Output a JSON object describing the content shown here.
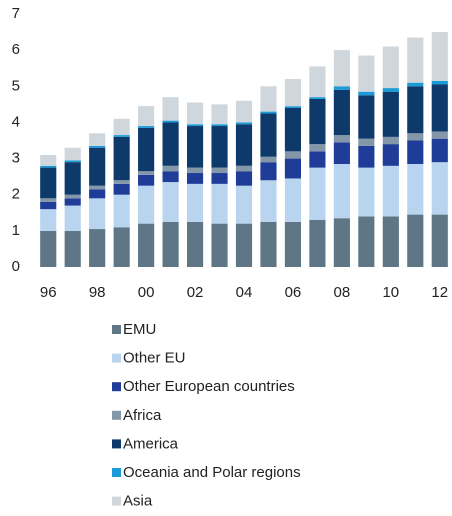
{
  "chart_data": {
    "type": "stacked_bar",
    "categories": [
      "96",
      null,
      "98",
      null,
      "00",
      null,
      "02",
      null,
      "04",
      null,
      "06",
      null,
      "08",
      null,
      "10",
      null,
      "12"
    ],
    "ylim": [
      0,
      7
    ],
    "yticks": [
      0,
      1,
      2,
      3,
      4,
      5,
      6,
      7
    ],
    "grid": false,
    "series": [
      {
        "name": "EMU",
        "color": "#5f7686",
        "values": [
          1.0,
          1.0,
          1.05,
          1.1,
          1.2,
          1.25,
          1.25,
          1.2,
          1.2,
          1.25,
          1.25,
          1.3,
          1.35,
          1.4,
          1.4,
          1.45,
          1.45
        ]
      },
      {
        "name": "Other EU",
        "color": "#b8d4ee",
        "values": [
          0.6,
          0.7,
          0.85,
          0.9,
          1.05,
          1.1,
          1.05,
          1.1,
          1.05,
          1.15,
          1.2,
          1.45,
          1.5,
          1.35,
          1.4,
          1.4,
          1.45
        ]
      },
      {
        "name": "Other European countries",
        "color": "#1f3c99",
        "values": [
          0.2,
          0.2,
          0.25,
          0.3,
          0.3,
          0.3,
          0.3,
          0.3,
          0.4,
          0.5,
          0.55,
          0.45,
          0.6,
          0.6,
          0.6,
          0.65,
          0.65
        ]
      },
      {
        "name": "Africa",
        "color": "#8497a8",
        "values": [
          0.1,
          0.1,
          0.1,
          0.1,
          0.1,
          0.15,
          0.15,
          0.15,
          0.15,
          0.15,
          0.2,
          0.2,
          0.2,
          0.2,
          0.2,
          0.2,
          0.2
        ]
      },
      {
        "name": "America",
        "color": "#0d3a6b",
        "values": [
          0.85,
          0.9,
          1.05,
          1.2,
          1.2,
          1.2,
          1.15,
          1.15,
          1.15,
          1.2,
          1.2,
          1.25,
          1.25,
          1.2,
          1.25,
          1.3,
          1.3
        ]
      },
      {
        "name": "Oceania and Polar regions",
        "color": "#1a9ad6",
        "values": [
          0.05,
          0.05,
          0.05,
          0.05,
          0.05,
          0.05,
          0.05,
          0.05,
          0.05,
          0.05,
          0.05,
          0.05,
          0.1,
          0.1,
          0.1,
          0.1,
          0.1
        ]
      },
      {
        "name": "Asia",
        "color": "#cfd6dc",
        "values": [
          0.3,
          0.35,
          0.35,
          0.45,
          0.55,
          0.65,
          0.6,
          0.55,
          0.6,
          0.7,
          0.75,
          0.85,
          1.0,
          1.0,
          1.15,
          1.25,
          1.35
        ]
      }
    ]
  }
}
